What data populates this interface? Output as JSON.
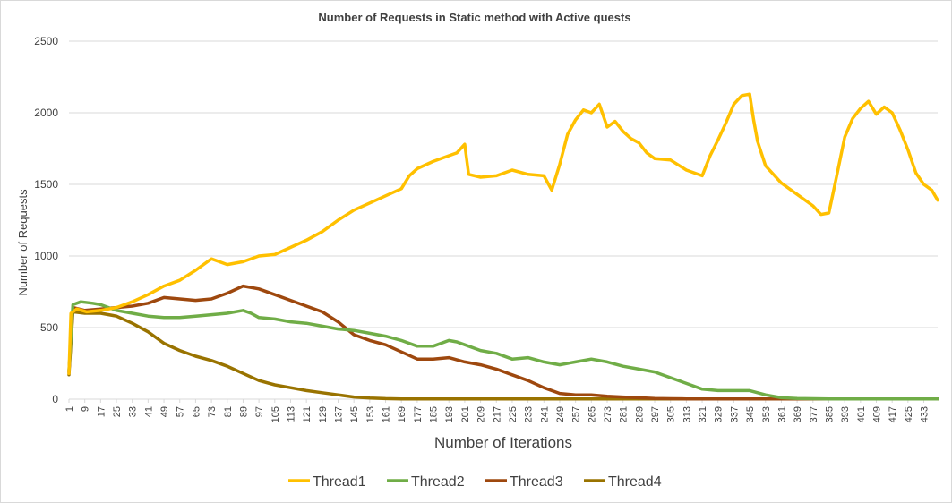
{
  "chart_data": {
    "type": "line",
    "title": "Number of Requests in Static method with Active quests",
    "xlabel": "Number of Iterations",
    "ylabel": "Number of Requests",
    "xlim": [
      1,
      440
    ],
    "ylim": [
      0,
      2500
    ],
    "y_ticks": [
      "0",
      "500",
      "1000",
      "1500",
      "2000",
      "2500"
    ],
    "x_ticks": [
      "1",
      "9",
      "17",
      "25",
      "33",
      "41",
      "49",
      "57",
      "65",
      "73",
      "81",
      "89",
      "97",
      "105",
      "113",
      "121",
      "129",
      "137",
      "145",
      "153",
      "161",
      "169",
      "177",
      "185",
      "193",
      "201",
      "209",
      "217",
      "225",
      "233",
      "241",
      "249",
      "257",
      "265",
      "273",
      "281",
      "289",
      "297",
      "305",
      "313",
      "321",
      "329",
      "337",
      "345",
      "353",
      "361",
      "369",
      "377",
      "385",
      "393",
      "401",
      "409",
      "417",
      "425",
      "433"
    ],
    "grid": "horizontal",
    "legend_position": "bottom",
    "series": [
      {
        "name": "Thread1",
        "color": "#FFC000",
        "points": [
          [
            1,
            180
          ],
          [
            2,
            600
          ],
          [
            5,
            630
          ],
          [
            10,
            610
          ],
          [
            17,
            620
          ],
          [
            25,
            640
          ],
          [
            33,
            680
          ],
          [
            41,
            730
          ],
          [
            49,
            790
          ],
          [
            57,
            830
          ],
          [
            65,
            900
          ],
          [
            73,
            980
          ],
          [
            77,
            960
          ],
          [
            81,
            940
          ],
          [
            89,
            960
          ],
          [
            97,
            1000
          ],
          [
            105,
            1010
          ],
          [
            113,
            1060
          ],
          [
            121,
            1110
          ],
          [
            129,
            1170
          ],
          [
            137,
            1250
          ],
          [
            145,
            1320
          ],
          [
            153,
            1370
          ],
          [
            161,
            1420
          ],
          [
            169,
            1470
          ],
          [
            173,
            1560
          ],
          [
            177,
            1610
          ],
          [
            185,
            1660
          ],
          [
            193,
            1700
          ],
          [
            197,
            1720
          ],
          [
            201,
            1780
          ],
          [
            203,
            1570
          ],
          [
            209,
            1550
          ],
          [
            217,
            1560
          ],
          [
            225,
            1600
          ],
          [
            233,
            1570
          ],
          [
            241,
            1560
          ],
          [
            245,
            1460
          ],
          [
            249,
            1640
          ],
          [
            253,
            1850
          ],
          [
            257,
            1950
          ],
          [
            261,
            2020
          ],
          [
            265,
            2000
          ],
          [
            269,
            2060
          ],
          [
            273,
            1900
          ],
          [
            277,
            1940
          ],
          [
            281,
            1870
          ],
          [
            285,
            1820
          ],
          [
            289,
            1790
          ],
          [
            293,
            1720
          ],
          [
            297,
            1680
          ],
          [
            305,
            1670
          ],
          [
            313,
            1600
          ],
          [
            321,
            1560
          ],
          [
            325,
            1700
          ],
          [
            329,
            1810
          ],
          [
            333,
            1930
          ],
          [
            337,
            2060
          ],
          [
            341,
            2120
          ],
          [
            345,
            2130
          ],
          [
            347,
            1950
          ],
          [
            349,
            1800
          ],
          [
            353,
            1630
          ],
          [
            361,
            1510
          ],
          [
            369,
            1430
          ],
          [
            377,
            1350
          ],
          [
            381,
            1290
          ],
          [
            385,
            1300
          ],
          [
            389,
            1560
          ],
          [
            393,
            1830
          ],
          [
            397,
            1960
          ],
          [
            401,
            2030
          ],
          [
            405,
            2080
          ],
          [
            409,
            1990
          ],
          [
            413,
            2040
          ],
          [
            417,
            2000
          ],
          [
            421,
            1880
          ],
          [
            425,
            1740
          ],
          [
            429,
            1580
          ],
          [
            433,
            1500
          ],
          [
            437,
            1460
          ],
          [
            440,
            1390
          ]
        ]
      },
      {
        "name": "Thread2",
        "color": "#70AD47",
        "points": [
          [
            1,
            200
          ],
          [
            3,
            660
          ],
          [
            7,
            680
          ],
          [
            13,
            670
          ],
          [
            17,
            660
          ],
          [
            25,
            620
          ],
          [
            33,
            600
          ],
          [
            41,
            580
          ],
          [
            49,
            570
          ],
          [
            57,
            570
          ],
          [
            65,
            580
          ],
          [
            73,
            590
          ],
          [
            81,
            600
          ],
          [
            89,
            620
          ],
          [
            93,
            600
          ],
          [
            97,
            570
          ],
          [
            105,
            560
          ],
          [
            113,
            540
          ],
          [
            121,
            530
          ],
          [
            129,
            510
          ],
          [
            137,
            490
          ],
          [
            145,
            480
          ],
          [
            153,
            460
          ],
          [
            161,
            440
          ],
          [
            169,
            410
          ],
          [
            177,
            370
          ],
          [
            185,
            370
          ],
          [
            193,
            410
          ],
          [
            197,
            400
          ],
          [
            201,
            380
          ],
          [
            209,
            340
          ],
          [
            217,
            320
          ],
          [
            225,
            280
          ],
          [
            233,
            290
          ],
          [
            241,
            260
          ],
          [
            245,
            250
          ],
          [
            249,
            240
          ],
          [
            257,
            260
          ],
          [
            265,
            280
          ],
          [
            273,
            260
          ],
          [
            281,
            230
          ],
          [
            289,
            210
          ],
          [
            297,
            190
          ],
          [
            305,
            150
          ],
          [
            313,
            110
          ],
          [
            321,
            70
          ],
          [
            329,
            60
          ],
          [
            337,
            60
          ],
          [
            345,
            60
          ],
          [
            353,
            30
          ],
          [
            361,
            10
          ],
          [
            369,
            5
          ],
          [
            377,
            3
          ],
          [
            385,
            2
          ],
          [
            393,
            2
          ],
          [
            401,
            1
          ],
          [
            409,
            1
          ],
          [
            417,
            1
          ],
          [
            425,
            1
          ],
          [
            433,
            1
          ],
          [
            440,
            1
          ]
        ]
      },
      {
        "name": "Thread3",
        "color": "#9E480E",
        "points": [
          [
            1,
            190
          ],
          [
            3,
            640
          ],
          [
            9,
            620
          ],
          [
            17,
            630
          ],
          [
            25,
            640
          ],
          [
            33,
            650
          ],
          [
            41,
            670
          ],
          [
            49,
            710
          ],
          [
            57,
            700
          ],
          [
            65,
            690
          ],
          [
            73,
            700
          ],
          [
            81,
            740
          ],
          [
            89,
            790
          ],
          [
            97,
            770
          ],
          [
            105,
            730
          ],
          [
            113,
            690
          ],
          [
            121,
            650
          ],
          [
            129,
            610
          ],
          [
            137,
            540
          ],
          [
            145,
            450
          ],
          [
            153,
            410
          ],
          [
            161,
            380
          ],
          [
            169,
            330
          ],
          [
            177,
            280
          ],
          [
            185,
            280
          ],
          [
            193,
            290
          ],
          [
            201,
            260
          ],
          [
            209,
            240
          ],
          [
            217,
            210
          ],
          [
            225,
            170
          ],
          [
            233,
            130
          ],
          [
            241,
            80
          ],
          [
            249,
            40
          ],
          [
            257,
            30
          ],
          [
            265,
            30
          ],
          [
            273,
            20
          ],
          [
            281,
            15
          ],
          [
            289,
            10
          ],
          [
            297,
            5
          ],
          [
            305,
            3
          ],
          [
            313,
            2
          ],
          [
            321,
            1
          ],
          [
            329,
            1
          ],
          [
            337,
            1
          ],
          [
            345,
            1
          ],
          [
            353,
            1
          ],
          [
            361,
            1
          ],
          [
            369,
            1
          ],
          [
            377,
            1
          ],
          [
            385,
            1
          ],
          [
            393,
            1
          ],
          [
            401,
            1
          ],
          [
            409,
            1
          ],
          [
            417,
            1
          ],
          [
            425,
            1
          ],
          [
            433,
            1
          ],
          [
            440,
            1
          ]
        ]
      },
      {
        "name": "Thread4",
        "color": "#997300",
        "points": [
          [
            1,
            170
          ],
          [
            3,
            610
          ],
          [
            9,
            600
          ],
          [
            17,
            600
          ],
          [
            25,
            580
          ],
          [
            33,
            530
          ],
          [
            41,
            470
          ],
          [
            49,
            390
          ],
          [
            57,
            340
          ],
          [
            65,
            300
          ],
          [
            73,
            270
          ],
          [
            81,
            230
          ],
          [
            89,
            180
          ],
          [
            97,
            130
          ],
          [
            105,
            100
          ],
          [
            113,
            80
          ],
          [
            121,
            60
          ],
          [
            129,
            45
          ],
          [
            137,
            30
          ],
          [
            145,
            15
          ],
          [
            153,
            8
          ],
          [
            161,
            4
          ],
          [
            169,
            2
          ],
          [
            177,
            1
          ],
          [
            185,
            1
          ],
          [
            193,
            1
          ],
          [
            201,
            1
          ],
          [
            209,
            1
          ],
          [
            217,
            1
          ],
          [
            225,
            1
          ],
          [
            233,
            1
          ],
          [
            241,
            1
          ],
          [
            249,
            1
          ],
          [
            257,
            1
          ],
          [
            265,
            1
          ],
          [
            273,
            1
          ],
          [
            281,
            1
          ],
          [
            289,
            1
          ],
          [
            297,
            1
          ],
          [
            305,
            1
          ],
          [
            313,
            1
          ],
          [
            321,
            1
          ],
          [
            329,
            1
          ],
          [
            337,
            1
          ],
          [
            345,
            1
          ],
          [
            353,
            1
          ],
          [
            361,
            1
          ],
          [
            369,
            1
          ],
          [
            377,
            1
          ],
          [
            385,
            1
          ],
          [
            393,
            1
          ],
          [
            401,
            1
          ],
          [
            409,
            1
          ],
          [
            417,
            1
          ],
          [
            425,
            1
          ],
          [
            433,
            1
          ],
          [
            440,
            1
          ]
        ]
      }
    ]
  }
}
